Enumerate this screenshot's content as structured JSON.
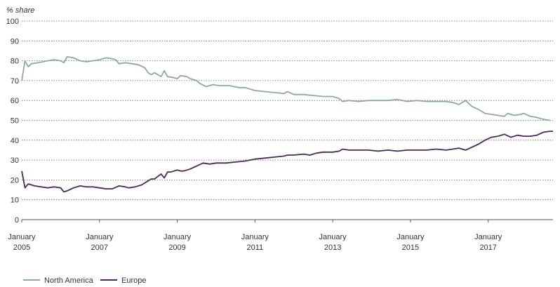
{
  "chart_data": {
    "type": "line",
    "ylabel": "% share",
    "ylim": [
      0,
      100
    ],
    "yticks": [
      0,
      10,
      20,
      30,
      40,
      50,
      60,
      70,
      80,
      90,
      100
    ],
    "xlim": [
      "2005-01",
      "2018-09"
    ],
    "xticks": [
      {
        "date": "2005-01",
        "line1": "January",
        "line2": "2005"
      },
      {
        "date": "2007-01",
        "line1": "January",
        "line2": "2007"
      },
      {
        "date": "2009-01",
        "line1": "January",
        "line2": "2009"
      },
      {
        "date": "2011-01",
        "line1": "January",
        "line2": "2011"
      },
      {
        "date": "2013-01",
        "line1": "January",
        "line2": "2013"
      },
      {
        "date": "2015-01",
        "line1": "January",
        "line2": "2015"
      },
      {
        "date": "2017-01",
        "line1": "January",
        "line2": "2017"
      }
    ],
    "grid": "horizontal dotted",
    "legend_position": "bottom-left",
    "series": [
      {
        "name": "North America",
        "color": "#8fa99d",
        "points": [
          [
            "2005-01",
            70
          ],
          [
            "2005-02",
            80
          ],
          [
            "2005-03",
            77
          ],
          [
            "2005-04",
            78.5
          ],
          [
            "2005-06",
            79
          ],
          [
            "2005-09",
            80
          ],
          [
            "2005-11",
            80.5
          ],
          [
            "2006-01",
            80
          ],
          [
            "2006-02",
            79
          ],
          [
            "2006-03",
            82
          ],
          [
            "2006-05",
            81.5
          ],
          [
            "2006-07",
            80
          ],
          [
            "2006-09",
            79.5
          ],
          [
            "2006-11",
            80
          ],
          [
            "2007-01",
            80.5
          ],
          [
            "2007-03",
            81.5
          ],
          [
            "2007-05",
            81
          ],
          [
            "2007-06",
            80.5
          ],
          [
            "2007-07",
            78.5
          ],
          [
            "2007-09",
            79
          ],
          [
            "2007-11",
            78.5
          ],
          [
            "2008-01",
            78
          ],
          [
            "2008-03",
            76.5
          ],
          [
            "2008-04",
            74
          ],
          [
            "2008-05",
            73
          ],
          [
            "2008-06",
            74
          ],
          [
            "2008-07",
            73
          ],
          [
            "2008-08",
            72
          ],
          [
            "2008-09",
            75
          ],
          [
            "2008-10",
            72
          ],
          [
            "2008-12",
            71.5
          ],
          [
            "2009-01",
            71
          ],
          [
            "2009-02",
            72.5
          ],
          [
            "2009-04",
            72
          ],
          [
            "2009-05",
            71
          ],
          [
            "2009-07",
            70
          ],
          [
            "2009-08",
            68.5
          ],
          [
            "2009-10",
            67
          ],
          [
            "2009-12",
            68
          ],
          [
            "2010-02",
            67.5
          ],
          [
            "2010-05",
            67.5
          ],
          [
            "2010-08",
            66.5
          ],
          [
            "2010-10",
            66.5
          ],
          [
            "2011-01",
            65
          ],
          [
            "2011-04",
            64.5
          ],
          [
            "2011-07",
            64
          ],
          [
            "2011-10",
            63.5
          ],
          [
            "2011-11",
            64.5
          ],
          [
            "2012-01",
            63
          ],
          [
            "2012-04",
            63
          ],
          [
            "2012-07",
            62.5
          ],
          [
            "2012-10",
            62
          ],
          [
            "2013-01",
            62
          ],
          [
            "2013-03",
            61
          ],
          [
            "2013-04",
            59.5
          ],
          [
            "2013-06",
            60
          ],
          [
            "2013-09",
            59.5
          ],
          [
            "2013-12",
            60
          ],
          [
            "2014-03",
            60
          ],
          [
            "2014-06",
            60
          ],
          [
            "2014-09",
            60.5
          ],
          [
            "2014-12",
            59.5
          ],
          [
            "2015-03",
            60
          ],
          [
            "2015-06",
            59.5
          ],
          [
            "2015-09",
            59.5
          ],
          [
            "2015-12",
            59.5
          ],
          [
            "2016-02",
            59
          ],
          [
            "2016-04",
            58
          ],
          [
            "2016-06",
            60
          ],
          [
            "2016-08",
            57
          ],
          [
            "2016-10",
            55.5
          ],
          [
            "2016-12",
            53.5
          ],
          [
            "2017-02",
            53
          ],
          [
            "2017-04",
            52.5
          ],
          [
            "2017-06",
            52
          ],
          [
            "2017-07",
            53.5
          ],
          [
            "2017-09",
            52.5
          ],
          [
            "2017-11",
            53
          ],
          [
            "2017-12",
            53.5
          ],
          [
            "2018-02",
            52
          ],
          [
            "2018-04",
            51.5
          ],
          [
            "2018-06",
            50.5
          ],
          [
            "2018-08",
            50
          ]
        ]
      },
      {
        "name": "Europe",
        "color": "#4a2a5e",
        "points": [
          [
            "2005-01",
            24.5
          ],
          [
            "2005-02",
            16
          ],
          [
            "2005-03",
            18
          ],
          [
            "2005-05",
            17
          ],
          [
            "2005-07",
            16.5
          ],
          [
            "2005-09",
            16
          ],
          [
            "2005-11",
            16.5
          ],
          [
            "2006-01",
            16
          ],
          [
            "2006-02",
            14
          ],
          [
            "2006-03",
            14.5
          ],
          [
            "2006-05",
            16
          ],
          [
            "2006-07",
            17
          ],
          [
            "2006-09",
            16.5
          ],
          [
            "2006-11",
            16.5
          ],
          [
            "2007-01",
            16
          ],
          [
            "2007-03",
            15.5
          ],
          [
            "2007-05",
            15.5
          ],
          [
            "2007-07",
            17
          ],
          [
            "2007-09",
            16.5
          ],
          [
            "2007-10",
            16
          ],
          [
            "2007-12",
            16.5
          ],
          [
            "2008-02",
            17.5
          ],
          [
            "2008-04",
            19.5
          ],
          [
            "2008-05",
            20.5
          ],
          [
            "2008-06",
            20.5
          ],
          [
            "2008-08",
            23
          ],
          [
            "2008-09",
            21
          ],
          [
            "2008-10",
            24
          ],
          [
            "2008-11",
            24
          ],
          [
            "2009-01",
            25
          ],
          [
            "2009-02",
            24.5
          ],
          [
            "2009-03",
            24.5
          ],
          [
            "2009-05",
            25.5
          ],
          [
            "2009-07",
            27
          ],
          [
            "2009-09",
            28.5
          ],
          [
            "2009-11",
            28
          ],
          [
            "2010-01",
            28.5
          ],
          [
            "2010-04",
            28.5
          ],
          [
            "2010-07",
            29
          ],
          [
            "2010-10",
            29.5
          ],
          [
            "2011-01",
            30.5
          ],
          [
            "2011-04",
            31
          ],
          [
            "2011-07",
            31.5
          ],
          [
            "2011-10",
            32
          ],
          [
            "2011-11",
            32.5
          ],
          [
            "2012-01",
            32.5
          ],
          [
            "2012-04",
            33
          ],
          [
            "2012-06",
            32.5
          ],
          [
            "2012-08",
            33.5
          ],
          [
            "2012-10",
            34
          ],
          [
            "2013-01",
            34
          ],
          [
            "2013-03",
            34.5
          ],
          [
            "2013-04",
            35.5
          ],
          [
            "2013-06",
            35
          ],
          [
            "2013-09",
            35
          ],
          [
            "2013-12",
            35
          ],
          [
            "2014-03",
            34.5
          ],
          [
            "2014-06",
            35
          ],
          [
            "2014-09",
            34.5
          ],
          [
            "2014-12",
            35
          ],
          [
            "2015-03",
            35
          ],
          [
            "2015-06",
            35
          ],
          [
            "2015-09",
            35.5
          ],
          [
            "2015-12",
            35
          ],
          [
            "2016-02",
            35.5
          ],
          [
            "2016-04",
            36
          ],
          [
            "2016-06",
            35
          ],
          [
            "2016-08",
            36.5
          ],
          [
            "2016-10",
            38
          ],
          [
            "2016-12",
            40
          ],
          [
            "2017-02",
            41.5
          ],
          [
            "2017-04",
            42
          ],
          [
            "2017-06",
            43
          ],
          [
            "2017-08",
            41.5
          ],
          [
            "2017-10",
            42.5
          ],
          [
            "2017-12",
            42
          ],
          [
            "2018-02",
            42
          ],
          [
            "2018-04",
            42.5
          ],
          [
            "2018-06",
            44
          ],
          [
            "2018-08",
            44.5
          ],
          [
            "2018-09",
            44.5
          ]
        ]
      }
    ]
  }
}
